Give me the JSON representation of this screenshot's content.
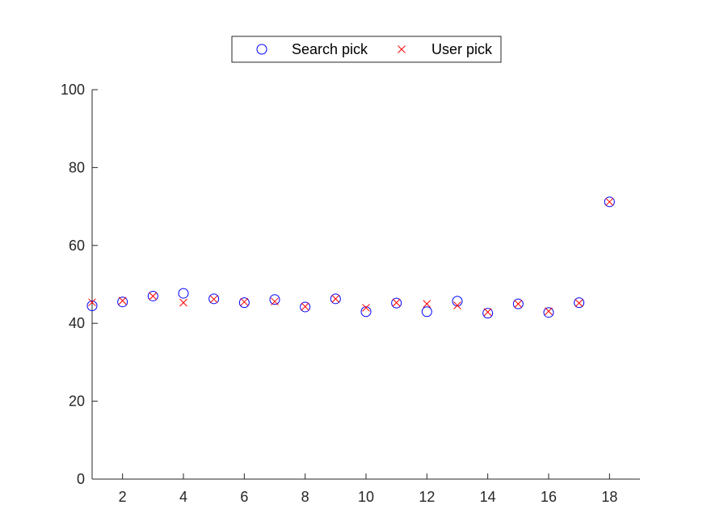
{
  "chart_data": {
    "type": "scatter",
    "x": [
      1,
      2,
      3,
      4,
      5,
      6,
      7,
      8,
      9,
      10,
      11,
      12,
      13,
      14,
      15,
      16,
      17,
      18
    ],
    "series": [
      {
        "name": "Search pick",
        "marker": "circle",
        "color": "#0000ff",
        "values": [
          44.5,
          45.5,
          47.0,
          47.7,
          46.3,
          45.3,
          46.1,
          44.2,
          46.3,
          43.0,
          45.2,
          43.0,
          45.7,
          42.6,
          45.0,
          42.8,
          45.3,
          71.2
        ]
      },
      {
        "name": "User pick",
        "marker": "x",
        "color": "#ff0000",
        "values": [
          45.4,
          45.8,
          47.0,
          45.3,
          46.2,
          45.5,
          45.6,
          44.3,
          46.3,
          44.0,
          45.3,
          45.0,
          44.6,
          42.9,
          45.0,
          43.1,
          45.2,
          71.2
        ]
      }
    ],
    "xlim": [
      1,
      19
    ],
    "ylim": [
      0,
      100
    ],
    "xticks": [
      2,
      4,
      6,
      8,
      10,
      12,
      14,
      16,
      18
    ],
    "yticks": [
      0,
      20,
      40,
      60,
      80,
      100
    ],
    "legend": {
      "position": "top-center",
      "orientation": "horizontal",
      "entries": [
        "Search pick",
        "User pick"
      ]
    },
    "grid": false
  }
}
